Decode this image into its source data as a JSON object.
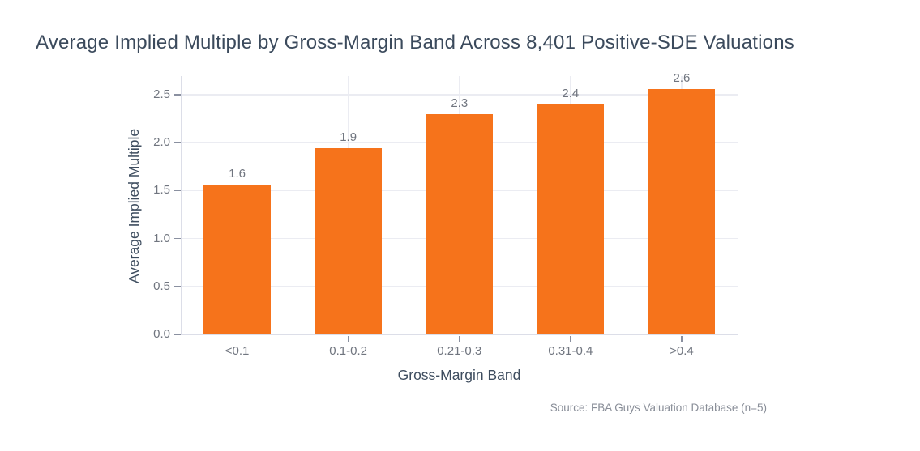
{
  "chart_data": {
    "type": "bar",
    "title": "Average Implied Multiple by Gross-Margin Band Across 8,401 Positive-SDE Valuations",
    "categories": [
      "<0.1",
      "0.1-0.2",
      "0.21-0.3",
      "0.31-0.4",
      ">0.4"
    ],
    "values": [
      1.6,
      1.9,
      2.3,
      2.4,
      2.6
    ],
    "bar_labels": [
      "1.6",
      "1.9",
      "2.3",
      "2.4",
      "2.6"
    ],
    "values_est_from_bar_heights": [
      1.56,
      1.94,
      2.3,
      2.4,
      2.56
    ],
    "xlabel": "Gross-Margin Band",
    "ylabel": "Average Implied Multiple",
    "y_ticks": [
      0.0,
      0.5,
      1.0,
      1.5,
      2.0,
      2.5
    ],
    "ylim": [
      0,
      2.69
    ],
    "grid": "horizontal gridlines at 0.5 intervals plus faint vertical gridlines at category centers",
    "legend": "none",
    "source": "Source: FBA Guys Valuation Database (n=5)"
  },
  "colors": {
    "background": "#ffffff",
    "title_text": "#3b4a5c",
    "axis_label_text": "#3e4d5f",
    "tick_text": "#70757f",
    "source_text": "#898e98",
    "bar": "#f6731b",
    "gridline": "#ebecf2",
    "spine": "#dcdee8",
    "tick_mark": "#8a90a0"
  }
}
